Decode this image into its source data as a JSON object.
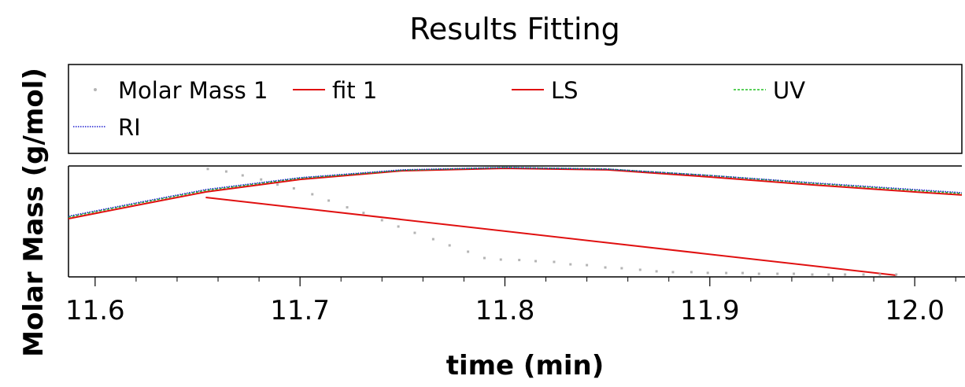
{
  "chart_data": {
    "type": "line",
    "title": "Results Fitting",
    "xlabel": "time (min)",
    "ylabel": "Molar Mass (g/mol)",
    "xlim": [
      11.587,
      12.023
    ],
    "ylim": [
      0,
      1
    ],
    "x_ticks": [
      "11.6",
      "11.7",
      "11.8",
      "11.9",
      "12.0"
    ],
    "x_tick_values": [
      11.6,
      11.7,
      11.8,
      11.9,
      12.0
    ],
    "y_ticks": [],
    "grid": false,
    "legend_position": "top",
    "series": [
      {
        "name": "Molar Mass 1",
        "style": "dots",
        "color": "#b4b4b4",
        "x": [
          11.655,
          11.664,
          11.672,
          11.681,
          11.689,
          11.697,
          11.706,
          11.714,
          11.723,
          11.731,
          11.74,
          11.748,
          11.756,
          11.765,
          11.773,
          11.782,
          11.79,
          11.798,
          11.807,
          11.815,
          11.824,
          11.832,
          11.84,
          11.849,
          11.857,
          11.866,
          11.874,
          11.882,
          11.891,
          11.899,
          11.908,
          11.916,
          11.924,
          11.933,
          11.941,
          11.95,
          11.958,
          11.966,
          11.975,
          11.983,
          11.991
        ],
        "y": [
          0.973,
          0.95,
          0.915,
          0.878,
          0.832,
          0.798,
          0.745,
          0.688,
          0.627,
          0.577,
          0.511,
          0.454,
          0.397,
          0.34,
          0.284,
          0.227,
          0.17,
          0.156,
          0.152,
          0.142,
          0.135,
          0.113,
          0.106,
          0.085,
          0.078,
          0.064,
          0.05,
          0.043,
          0.043,
          0.036,
          0.035,
          0.035,
          0.028,
          0.028,
          0.028,
          0.021,
          0.021,
          0.021,
          0.021,
          0.021,
          0.021
        ]
      },
      {
        "name": "fit 1",
        "style": "solid",
        "color": "#e01010",
        "x": [
          11.654,
          11.991
        ],
        "y": [
          0.716,
          0.014
        ]
      },
      {
        "name": "LS",
        "style": "solid",
        "color": "#e01010",
        "x": [
          11.587,
          11.62,
          11.654,
          11.7,
          11.75,
          11.8,
          11.85,
          11.9,
          11.95,
          12.0,
          12.023
        ],
        "y": [
          0.525,
          0.645,
          0.766,
          0.879,
          0.957,
          0.979,
          0.965,
          0.901,
          0.83,
          0.766,
          0.738
        ]
      },
      {
        "name": "UV",
        "style": "dashed",
        "color": "#22c022",
        "x": [
          11.587,
          11.62,
          11.654,
          11.7,
          11.75,
          11.8,
          11.85,
          11.9,
          11.95,
          12.0,
          12.023
        ],
        "y": [
          0.54,
          0.66,
          0.78,
          0.89,
          0.962,
          0.986,
          0.972,
          0.914,
          0.844,
          0.78,
          0.752
        ]
      },
      {
        "name": "RI",
        "style": "dotted",
        "color": "#1f1fd0",
        "x": [
          11.587,
          11.62,
          11.654,
          11.7,
          11.75,
          11.8,
          11.85,
          11.9,
          11.95,
          12.0,
          12.023
        ],
        "y": [
          0.547,
          0.667,
          0.787,
          0.894,
          0.965,
          0.986,
          0.972,
          0.915,
          0.848,
          0.787,
          0.759
        ]
      }
    ]
  }
}
